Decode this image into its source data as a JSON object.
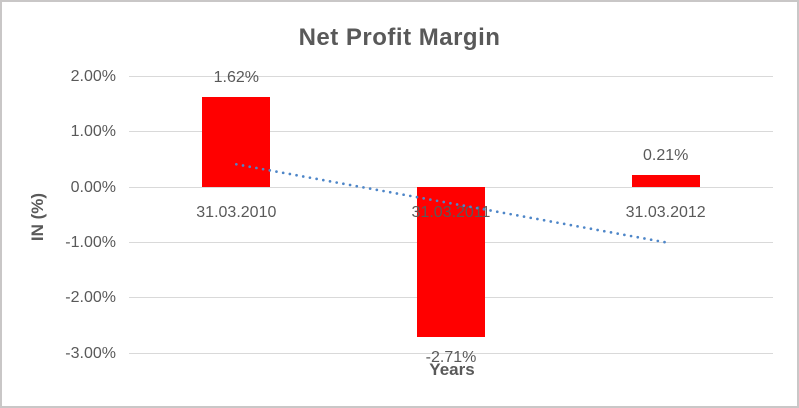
{
  "window": {
    "background": "#FFFFFF",
    "border_color": "#C9C7C7"
  },
  "chart_data": {
    "type": "bar",
    "title": "Net Profit Margin",
    "xlabel": "Years",
    "ylabel": "IN (%)",
    "categories": [
      "31.03.2010",
      "31.03.2011",
      "31.03.2012"
    ],
    "values": [
      1.62,
      -2.71,
      0.21
    ],
    "value_labels": [
      "1.62%",
      "-2.71%",
      "0.21%"
    ],
    "value_label_position": "outside-end",
    "bar_color": "#FF0000",
    "ylim": [
      -3,
      2
    ],
    "ytick_values": [
      2,
      1,
      0,
      -1,
      -2,
      -3
    ],
    "ytick_labels": [
      "2.00%",
      "1.00%",
      "0.00%",
      "-1.00%",
      "-2.00%",
      "-3.00%"
    ],
    "grid": true,
    "gridline_color": "#D9D9D9",
    "legend": "none",
    "text_color": "#595959",
    "trendline": {
      "type": "linear",
      "style": "dotted",
      "color": "#4E86C8",
      "start_value": 0.41,
      "end_value": -1.0
    }
  }
}
